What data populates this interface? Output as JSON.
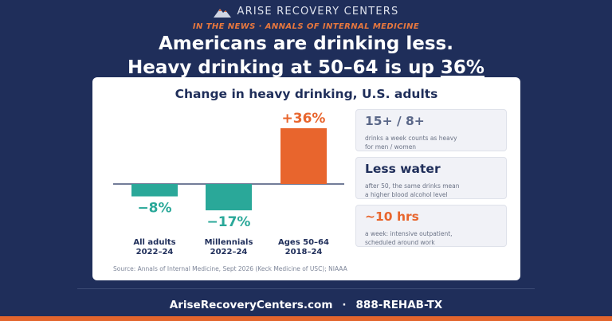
{
  "brand": {
    "name": "ARISE RECOVERY CENTERS",
    "logo_icon": "mountain-logo-icon"
  },
  "kicker": "IN THE NEWS · ANNALS OF INTERNAL MEDICINE",
  "headline": {
    "line1": "Americans are drinking less.",
    "line2_prefix": "Heavy drinking at 50–64 is up ",
    "line2_highlight": "36%"
  },
  "chart_data": {
    "type": "bar",
    "title": "Change in heavy drinking, U.S. adults",
    "categories": [
      {
        "line1": "All adults",
        "line2": "2022–24"
      },
      {
        "line1": "Millennials",
        "line2": "2022–24"
      },
      {
        "line1": "Ages 50–64",
        "line2": "2018–24"
      }
    ],
    "values": [
      -8,
      -17,
      36
    ],
    "value_labels": [
      "−8%",
      "−17%",
      "+36%"
    ],
    "colors": [
      "#2aa899",
      "#2aa899",
      "#e8652d"
    ],
    "baseline": 0,
    "xlabel": "",
    "ylabel": ""
  },
  "info_cards": [
    {
      "big": "15+ / 8+",
      "small_line1": "drinks a week counts as heavy",
      "small_line2": "for men / women",
      "color": "#5a6788"
    },
    {
      "big": "Less water",
      "small_line1": "after 50, the same drinks mean",
      "small_line2": "a higher blood alcohol level",
      "color": "#1f2e5a"
    },
    {
      "big": "~10 hrs",
      "small_line1": "a week: intensive outpatient,",
      "small_line2": "scheduled around work",
      "color": "#e8652d"
    }
  ],
  "source": "Source: Annals of Internal Medicine, Sept 2026 (Keck Medicine of USC); NIAAA",
  "footer": {
    "website": "AriseRecoveryCenters.com",
    "separator": "·",
    "phone": "888-REHAB-TX"
  },
  "colors": {
    "navy": "#1f2e5a",
    "orange": "#e8652d",
    "teal": "#2aa899"
  }
}
